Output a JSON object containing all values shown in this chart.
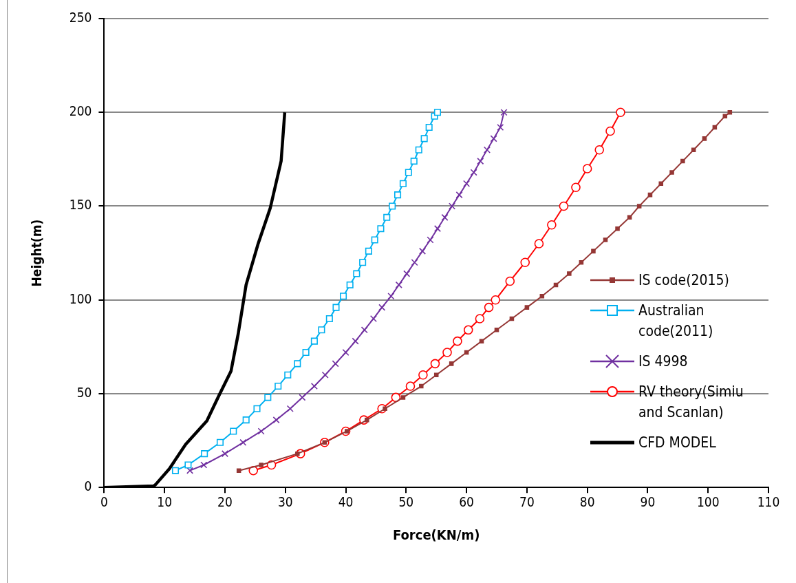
{
  "chart_data": {
    "type": "line",
    "xlabel": "Force(KN/m)",
    "ylabel": "Height(m)",
    "xlim": [
      0,
      110
    ],
    "xticks": [
      0,
      10,
      20,
      30,
      40,
      50,
      60,
      70,
      80,
      90,
      100,
      110
    ],
    "ylim": [
      0,
      250
    ],
    "yticks": [
      0,
      50,
      100,
      150,
      200,
      250
    ],
    "grid": "y",
    "legend": "right",
    "series": [
      {
        "name": "IS code(2015)",
        "color": "#953735",
        "marker": "square",
        "x": [
          22.3,
          26,
          32,
          36.5,
          40.2,
          43.5,
          46.5,
          49.5,
          52.5,
          55,
          57.5,
          60,
          62.5,
          65,
          67.5,
          70,
          72.5,
          74.8,
          77,
          79,
          81,
          83,
          85,
          87,
          88.6,
          90.4,
          92.2,
          94,
          95.8,
          97.6,
          99.4,
          101.1,
          102.8,
          103.6
        ],
        "values": [
          9,
          12,
          18,
          24,
          30,
          36,
          42,
          48,
          54,
          60,
          66,
          72,
          78,
          84,
          90,
          96,
          102,
          108,
          114,
          120,
          126,
          132,
          138,
          144,
          150,
          156,
          162,
          168,
          174,
          180,
          186,
          192,
          198,
          200
        ]
      },
      {
        "name": "Australian code(2011)",
        "color": "#00b0f0",
        "marker": "square",
        "x": [
          11.8,
          13.9,
          16.6,
          19.2,
          21.4,
          23.5,
          25.3,
          27.1,
          28.8,
          30.4,
          32,
          33.4,
          34.8,
          36,
          37.3,
          38.4,
          39.6,
          40.7,
          41.8,
          42.8,
          43.8,
          44.8,
          45.8,
          46.8,
          47.7,
          48.6,
          49.5,
          50.4,
          51.3,
          52.1,
          53,
          53.8,
          54.7,
          55.2
        ],
        "values": [
          9,
          12,
          18,
          24,
          30,
          36,
          42,
          48,
          54,
          60,
          66,
          72,
          78,
          84,
          90,
          96,
          102,
          108,
          114,
          120,
          126,
          132,
          138,
          144,
          150,
          156,
          162,
          168,
          174,
          180,
          186,
          192,
          198,
          200
        ]
      },
      {
        "name": "IS 4998",
        "color": "#7030a0",
        "marker": "cross",
        "x": [
          14.2,
          16.5,
          20,
          23,
          26,
          28.5,
          30.8,
          32.8,
          34.8,
          36.6,
          38.3,
          40,
          41.6,
          43.1,
          44.6,
          46,
          47.5,
          48.8,
          50.1,
          51.4,
          52.7,
          54,
          55.2,
          56.4,
          57.6,
          58.8,
          60,
          61.2,
          62.3,
          63.4,
          64.5,
          65.6,
          66.2
        ],
        "values": [
          9,
          12,
          18,
          24,
          30,
          36,
          42,
          48,
          54,
          60,
          66,
          72,
          78,
          84,
          90,
          96,
          102,
          108,
          114,
          120,
          126,
          132,
          138,
          144,
          150,
          156,
          162,
          168,
          174,
          180,
          186,
          192,
          200
        ]
      },
      {
        "name": "RV theory(Simiu and Scanlan)",
        "color": "#ff0000",
        "marker": "circle",
        "x": [
          24.7,
          27.7,
          32.5,
          36.5,
          40,
          43,
          46,
          48.3,
          50.7,
          52.8,
          54.8,
          56.8,
          58.5,
          60.3,
          62.2,
          63.7,
          64.8,
          67.2,
          69.7,
          72,
          74.1,
          76.1,
          78.1,
          80,
          82,
          83.8,
          85.5
        ],
        "values": [
          9,
          12,
          18,
          24,
          30,
          36,
          42,
          48,
          54,
          60,
          66,
          72,
          78,
          84,
          90,
          96,
          100,
          110,
          120,
          130,
          140,
          150,
          160,
          170,
          180,
          190,
          200
        ]
      },
      {
        "name": "CFD MODEL",
        "color": "#000000",
        "marker": "none",
        "x": [
          0,
          8.2,
          8.5,
          10.8,
          13.5,
          17,
          19,
          21,
          22.2,
          23.5,
          25.5,
          27.5,
          29.3,
          29.9
        ],
        "values": [
          0,
          0.8,
          1.5,
          10,
          23,
          35.5,
          49,
          62,
          82,
          108,
          130,
          149,
          174,
          200
        ]
      }
    ]
  }
}
